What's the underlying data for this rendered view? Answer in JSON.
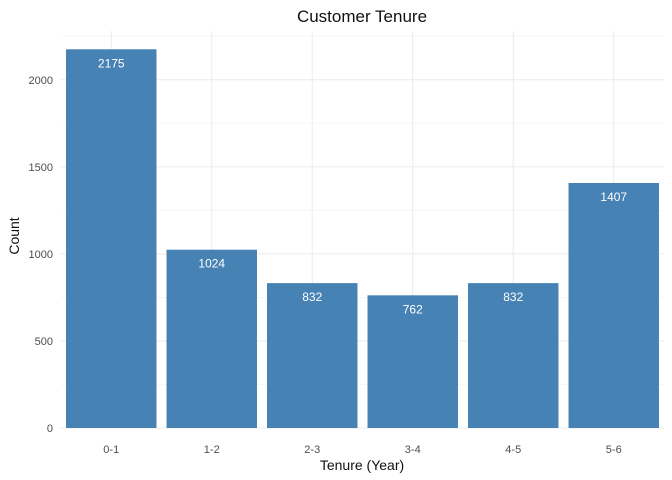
{
  "chart_data": {
    "type": "bar",
    "title": "Customer Tenure",
    "xlabel": "Tenure (Year)",
    "ylabel": "Count",
    "categories": [
      "0-1",
      "1-2",
      "2-3",
      "3-4",
      "4-5",
      "5-6"
    ],
    "values": [
      2175,
      1024,
      832,
      762,
      832,
      1407
    ],
    "data_labels": [
      "2175",
      "1024",
      "832",
      "762",
      "832",
      "1407"
    ],
    "y_ticks": [
      0,
      500,
      1000,
      1500,
      2000
    ],
    "y_tick_labels": [
      "0",
      "500",
      "1000",
      "1500",
      "2000"
    ],
    "ylim": [
      0,
      2280
    ],
    "grid": true,
    "bar_color": "#4682B4",
    "legend": "none"
  }
}
